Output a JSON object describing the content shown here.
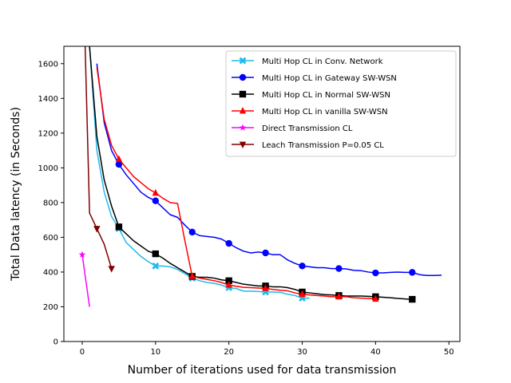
{
  "chart_data": {
    "type": "line",
    "title": "",
    "xlabel": "Number of iterations used for data transmission",
    "ylabel": "Total Data latency (in Seconds)",
    "xlim": [
      -2.5,
      51.5
    ],
    "ylim": [
      0,
      1700
    ],
    "xticks": [
      0,
      10,
      20,
      30,
      40,
      50
    ],
    "yticks": [
      0,
      200,
      400,
      600,
      800,
      1000,
      1200,
      1400,
      1600
    ],
    "grid": false,
    "legend_position": "top-right",
    "series": [
      {
        "name": "Multi Hop CL in Conv. Network",
        "color": "#1fbbea",
        "marker": "x",
        "x": [
          1,
          2,
          3,
          4,
          5,
          6,
          7,
          8,
          9,
          10,
          11,
          12,
          13,
          14,
          15,
          16,
          17,
          18,
          19,
          20,
          21,
          22,
          23,
          24,
          25,
          26,
          27,
          28,
          29,
          30,
          31
        ],
        "y": [
          1700,
          1100,
          860,
          720,
          650,
          570,
          530,
          490,
          460,
          435,
          435,
          430,
          415,
          390,
          365,
          350,
          340,
          335,
          325,
          310,
          305,
          290,
          290,
          288,
          285,
          285,
          283,
          272,
          265,
          250,
          250
        ],
        "marker_x": [
          5,
          10,
          15,
          20,
          25,
          30
        ]
      },
      {
        "name": "Multi Hop CL in Gateway SW-WSN",
        "color": "#0000ff",
        "marker": "o",
        "x": [
          2,
          3,
          4,
          5,
          6,
          7,
          8,
          9,
          10,
          11,
          12,
          13,
          14,
          15,
          16,
          17,
          18,
          19,
          20,
          21,
          22,
          23,
          24,
          25,
          26,
          27,
          28,
          29,
          30,
          31,
          32,
          33,
          34,
          35,
          36,
          37,
          38,
          39,
          40,
          41,
          42,
          43,
          44,
          45,
          46,
          47,
          48,
          49
        ],
        "y": [
          1600,
          1260,
          1100,
          1020,
          960,
          910,
          860,
          830,
          810,
          770,
          730,
          715,
          670,
          630,
          610,
          605,
          600,
          590,
          565,
          540,
          520,
          510,
          515,
          510,
          500,
          500,
          470,
          450,
          435,
          430,
          425,
          425,
          420,
          420,
          418,
          410,
          408,
          400,
          395,
          395,
          398,
          400,
          398,
          398,
          385,
          380,
          380,
          382
        ],
        "marker_x": [
          5,
          10,
          15,
          20,
          25,
          30,
          35,
          40,
          45
        ]
      },
      {
        "name": "Multi Hop CL in Normal SW-WSN",
        "color": "#000000",
        "marker": "s",
        "x": [
          1,
          2,
          3,
          4,
          5,
          6,
          7,
          8,
          9,
          10,
          11,
          12,
          13,
          14,
          15,
          16,
          17,
          18,
          19,
          20,
          21,
          22,
          23,
          24,
          25,
          26,
          27,
          28,
          29,
          30,
          31,
          32,
          33,
          34,
          35,
          36,
          37,
          38,
          39,
          40,
          41,
          42,
          43,
          44,
          45
        ],
        "y": [
          1700,
          1180,
          930,
          780,
          660,
          620,
          580,
          550,
          520,
          505,
          480,
          450,
          425,
          400,
          375,
          370,
          370,
          365,
          355,
          350,
          340,
          330,
          325,
          320,
          320,
          315,
          315,
          310,
          300,
          285,
          280,
          275,
          270,
          268,
          265,
          262,
          262,
          262,
          260,
          258,
          255,
          252,
          248,
          245,
          243
        ],
        "marker_x": [
          5,
          10,
          15,
          20,
          25,
          30,
          35,
          40,
          45
        ]
      },
      {
        "name": "Multi Hop CL in vanilla SW-WSN",
        "color": "#ff0000",
        "marker": "^",
        "x": [
          2,
          3,
          4,
          5,
          6,
          7,
          8,
          9,
          10,
          11,
          12,
          13,
          14,
          15,
          16,
          17,
          18,
          19,
          20,
          21,
          22,
          23,
          24,
          25,
          26,
          27,
          28,
          29,
          30,
          31,
          32,
          33,
          34,
          35,
          36,
          37,
          38,
          39,
          40
        ],
        "y": [
          1580,
          1280,
          1130,
          1050,
          1000,
          950,
          915,
          880,
          855,
          825,
          800,
          795,
          580,
          375,
          365,
          358,
          350,
          340,
          325,
          318,
          312,
          310,
          308,
          306,
          300,
          295,
          292,
          280,
          272,
          268,
          265,
          262,
          258,
          258,
          258,
          252,
          250,
          248,
          245
        ],
        "marker_x": [
          5,
          10,
          15,
          20,
          25,
          30,
          35,
          40
        ]
      },
      {
        "name": "Direct Transmission CL",
        "color": "#ff00ff",
        "marker": "*",
        "x": [
          0,
          1
        ],
        "y": [
          500,
          200
        ],
        "marker_x": [
          0
        ]
      },
      {
        "name": "Leach Transmission P=0.05 CL",
        "color": "#800000",
        "marker": "v",
        "x": [
          0.4,
          1,
          2,
          3,
          4
        ],
        "y": [
          1700,
          740,
          650,
          560,
          420
        ],
        "marker_x": [
          2,
          4
        ]
      }
    ]
  }
}
